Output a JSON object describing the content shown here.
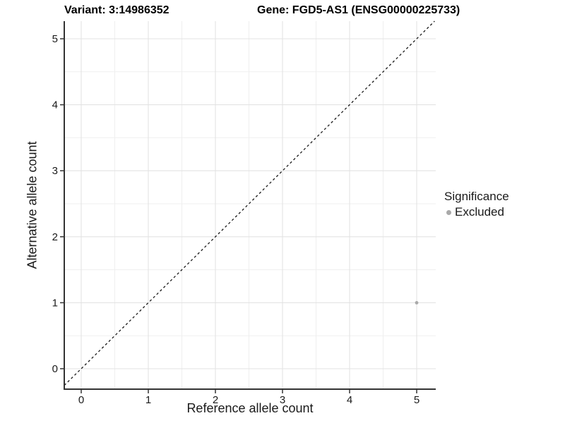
{
  "chart_data": {
    "type": "scatter",
    "title_left": "Variant: 3:14986352",
    "title_right": "Gene: FGD5-AS1 (ENSG00000225733)",
    "xlabel": "Reference allele count",
    "ylabel": "Alternative allele count",
    "xlim": [
      -0.25,
      5.28
    ],
    "ylim": [
      -0.31,
      5.27
    ],
    "xticks": [
      0,
      1,
      2,
      3,
      4,
      5
    ],
    "yticks": [
      0,
      1,
      2,
      3,
      4,
      5
    ],
    "grid": {
      "major": true,
      "minor": true,
      "major_color": "#e3e3e3",
      "minor_color": "#efefef"
    },
    "identity_line": {
      "type": "abline",
      "slope": 1,
      "intercept": 0,
      "style": "dashed",
      "color": "#1a1a1a"
    },
    "series": [
      {
        "name": "Excluded",
        "color": "#a9a9a9",
        "points": [
          {
            "x": 5,
            "y": 1
          }
        ]
      }
    ],
    "legend": {
      "title": "Significance",
      "position": "right",
      "items": [
        {
          "label": "Excluded",
          "color": "#a9a9a9"
        }
      ]
    },
    "axis": {
      "line_color": "#333333",
      "tick_color": "#333333",
      "tick_label_color": "#1a1a1a"
    }
  }
}
